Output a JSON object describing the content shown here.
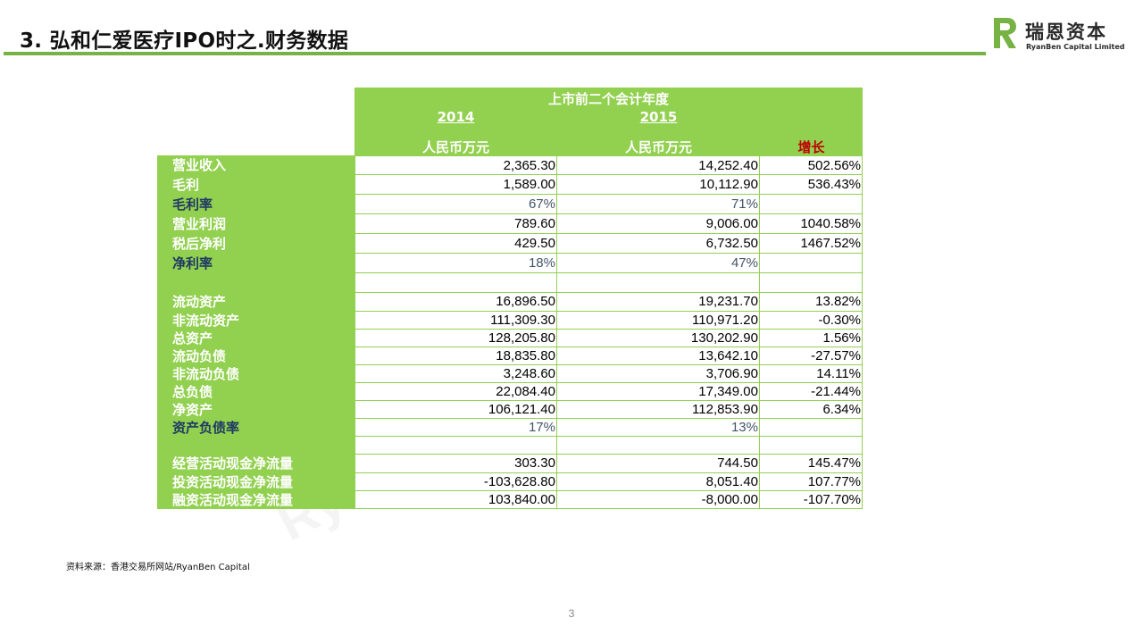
{
  "slide": {
    "title": "3. 弘和仁爱医疗IPO时之.财务数据",
    "source": "资料来源：香港交易所网站/RyanBen Capital",
    "page_number": "3",
    "accent_color": "#77b244",
    "table_green": "#92d050"
  },
  "logo": {
    "cn": "瑞恩资本",
    "en": "RyanBen Capital Limited",
    "icon": "ryanben-r-logo-icon"
  },
  "table": {
    "period_header": "上市前二个会计年度",
    "year_2014": "2014",
    "year_2015": "2015",
    "unit_2014": "人民币万元",
    "unit_2015": "人民币万元",
    "growth_header": "增长",
    "rows": [
      {
        "label": "营业收入",
        "v2014": "2,365.30",
        "v2015": "14,252.40",
        "growth": "502.56%",
        "style": "normal"
      },
      {
        "label": "毛利",
        "v2014": "1,589.00",
        "v2015": "10,112.90",
        "growth": "536.43%",
        "style": "normal"
      },
      {
        "label": "毛利率",
        "v2014": "67%",
        "v2015": "71%",
        "growth": "",
        "style": "ratio"
      },
      {
        "label": "营业利润",
        "v2014": "789.60",
        "v2015": "9,006.00",
        "growth": "1040.58%",
        "style": "normal"
      },
      {
        "label": "税后净利",
        "v2014": "429.50",
        "v2015": "6,732.50",
        "growth": "1467.52%",
        "style": "normal"
      },
      {
        "label": "净利率",
        "v2014": "18%",
        "v2015": "47%",
        "growth": "",
        "style": "ratio"
      },
      {
        "label": "",
        "v2014": "",
        "v2015": "",
        "growth": "",
        "style": "blank"
      },
      {
        "label": "流动资产",
        "v2014": "16,896.50",
        "v2015": "19,231.70",
        "growth": "13.82%",
        "style": "normal"
      },
      {
        "label": "非流动资产",
        "v2014": "111,309.30",
        "v2015": "110,971.20",
        "growth": "-0.30%",
        "style": "normal"
      },
      {
        "label": "总资产",
        "v2014": "128,205.80",
        "v2015": "130,202.90",
        "growth": "1.56%",
        "style": "normal"
      },
      {
        "label": "流动负债",
        "v2014": "18,835.80",
        "v2015": "13,642.10",
        "growth": "-27.57%",
        "style": "normal"
      },
      {
        "label": "非流动负债",
        "v2014": "3,248.60",
        "v2015": "3,706.90",
        "growth": "14.11%",
        "style": "normal"
      },
      {
        "label": "总负债",
        "v2014": "22,084.40",
        "v2015": "17,349.00",
        "growth": "-21.44%",
        "style": "normal"
      },
      {
        "label": "净资产",
        "v2014": "106,121.40",
        "v2015": "112,853.90",
        "growth": "6.34%",
        "style": "normal"
      },
      {
        "label": "资产负债率",
        "v2014": "17%",
        "v2015": "13%",
        "growth": "",
        "style": "ratio"
      },
      {
        "label": "",
        "v2014": "",
        "v2015": "",
        "growth": "",
        "style": "blank"
      },
      {
        "label": "经营活动现金净流量",
        "v2014": "303.30",
        "v2015": "744.50",
        "growth": "145.47%",
        "style": "normal"
      },
      {
        "label": "投资活动现金净流量",
        "v2014": "-103,628.80",
        "v2015": "8,051.40",
        "growth": "107.77%",
        "style": "normal"
      },
      {
        "label": "融资活动现金净流量",
        "v2014": "103,840.00",
        "v2015": "-8,000.00",
        "growth": "-107.70%",
        "style": "normal"
      }
    ]
  }
}
